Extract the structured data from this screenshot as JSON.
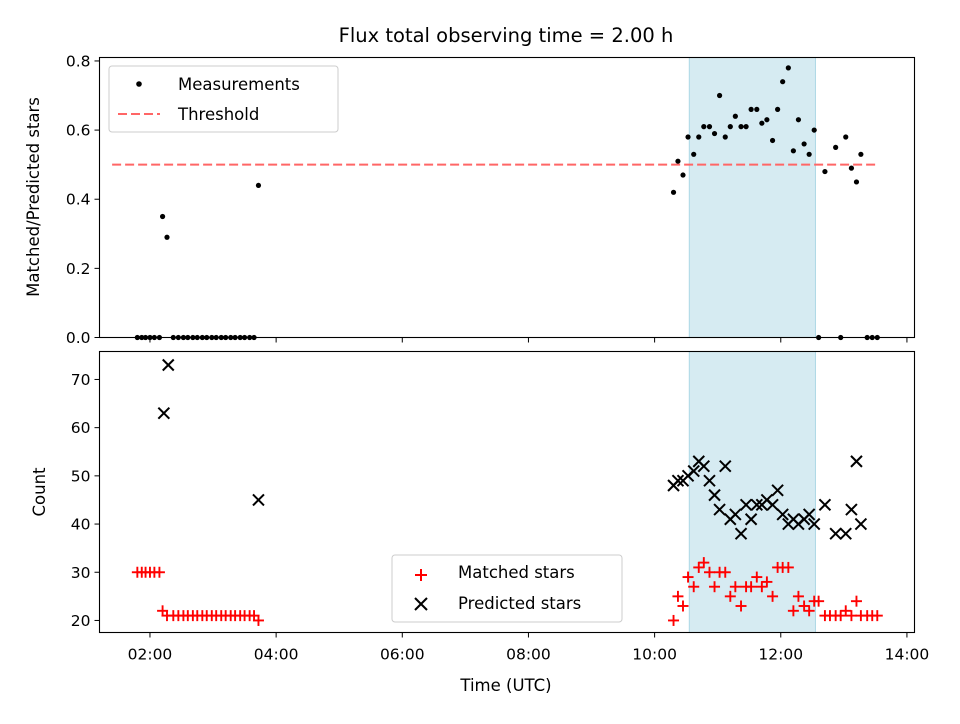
{
  "chart_data": {
    "title": "Flux total observing time = 2.00 h",
    "xlabel": "Time (UTC)",
    "xlim": [
      1.2,
      14.12
    ],
    "xticks": [
      2,
      4,
      6,
      8,
      10,
      12,
      14
    ],
    "xtick_labels": [
      "02:00",
      "04:00",
      "06:00",
      "08:00",
      "10:00",
      "12:00",
      "14:00"
    ],
    "highlight_span": {
      "x": [
        10.55,
        12.55
      ],
      "color": "#add8e6"
    },
    "panels": [
      {
        "id": "top",
        "type": "scatter",
        "ylabel": "Matched/Predicted stars",
        "ylim": [
          0,
          0.81
        ],
        "yticks": [
          0.0,
          0.2,
          0.4,
          0.6,
          0.8
        ],
        "ytick_labels": [
          "0.0",
          "0.2",
          "0.4",
          "0.6",
          "0.8"
        ],
        "legend": {
          "position": "top-left",
          "items": [
            "Measurements",
            "Threshold"
          ]
        },
        "threshold": {
          "name": "Threshold",
          "y": 0.5,
          "x": [
            1.4,
            13.55
          ],
          "color": "#ff6666",
          "dash": "dashed"
        },
        "series": [
          {
            "name": "Measurements",
            "color": "#000000",
            "marker": "dot",
            "points": [
              [
                1.8,
                0
              ],
              [
                1.87,
                0
              ],
              [
                1.93,
                0
              ],
              [
                2.0,
                0
              ],
              [
                2.07,
                0
              ],
              [
                2.15,
                0
              ],
              [
                2.2,
                0.35
              ],
              [
                2.27,
                0.29
              ],
              [
                2.37,
                0
              ],
              [
                2.45,
                0
              ],
              [
                2.53,
                0
              ],
              [
                2.6,
                0
              ],
              [
                2.68,
                0
              ],
              [
                2.75,
                0
              ],
              [
                2.83,
                0
              ],
              [
                2.9,
                0
              ],
              [
                2.98,
                0
              ],
              [
                3.05,
                0
              ],
              [
                3.13,
                0
              ],
              [
                3.2,
                0
              ],
              [
                3.28,
                0
              ],
              [
                3.35,
                0
              ],
              [
                3.43,
                0
              ],
              [
                3.5,
                0
              ],
              [
                3.58,
                0
              ],
              [
                3.65,
                0
              ],
              [
                3.72,
                0.44
              ],
              [
                10.3,
                0.42
              ],
              [
                10.37,
                0.51
              ],
              [
                10.45,
                0.47
              ],
              [
                10.53,
                0.58
              ],
              [
                10.62,
                0.53
              ],
              [
                10.7,
                0.58
              ],
              [
                10.78,
                0.61
              ],
              [
                10.87,
                0.61
              ],
              [
                10.95,
                0.59
              ],
              [
                11.03,
                0.7
              ],
              [
                11.12,
                0.58
              ],
              [
                11.2,
                0.61
              ],
              [
                11.28,
                0.64
              ],
              [
                11.37,
                0.61
              ],
              [
                11.45,
                0.61
              ],
              [
                11.53,
                0.66
              ],
              [
                11.62,
                0.66
              ],
              [
                11.7,
                0.62
              ],
              [
                11.78,
                0.63
              ],
              [
                11.87,
                0.57
              ],
              [
                11.95,
                0.66
              ],
              [
                12.03,
                0.74
              ],
              [
                12.12,
                0.78
              ],
              [
                12.2,
                0.54
              ],
              [
                12.28,
                0.63
              ],
              [
                12.37,
                0.56
              ],
              [
                12.45,
                0.53
              ],
              [
                12.53,
                0.6
              ],
              [
                12.6,
                0
              ],
              [
                12.7,
                0.48
              ],
              [
                12.87,
                0.55
              ],
              [
                12.95,
                0
              ],
              [
                13.03,
                0.58
              ],
              [
                13.12,
                0.49
              ],
              [
                13.2,
                0.45
              ],
              [
                13.27,
                0.53
              ],
              [
                13.37,
                0
              ],
              [
                13.45,
                0
              ],
              [
                13.53,
                0
              ]
            ]
          }
        ]
      },
      {
        "id": "bottom",
        "type": "scatter",
        "ylabel": "Count",
        "ylim": [
          17.5,
          75.8
        ],
        "yticks": [
          20,
          30,
          40,
          50,
          60,
          70
        ],
        "ytick_labels": [
          "20",
          "30",
          "40",
          "50",
          "60",
          "70"
        ],
        "legend": {
          "position": "lower-center",
          "items": [
            "Matched stars",
            "Predicted stars"
          ]
        },
        "series": [
          {
            "name": "Matched stars",
            "color": "#ff0000",
            "marker": "plus",
            "points": [
              [
                1.8,
                30
              ],
              [
                1.87,
                30
              ],
              [
                1.93,
                30
              ],
              [
                2.0,
                30
              ],
              [
                2.07,
                30
              ],
              [
                2.15,
                30
              ],
              [
                2.2,
                22
              ],
              [
                2.27,
                21
              ],
              [
                2.37,
                21
              ],
              [
                2.45,
                21
              ],
              [
                2.53,
                21
              ],
              [
                2.6,
                21
              ],
              [
                2.68,
                21
              ],
              [
                2.75,
                21
              ],
              [
                2.83,
                21
              ],
              [
                2.9,
                21
              ],
              [
                2.98,
                21
              ],
              [
                3.05,
                21
              ],
              [
                3.13,
                21
              ],
              [
                3.2,
                21
              ],
              [
                3.28,
                21
              ],
              [
                3.35,
                21
              ],
              [
                3.43,
                21
              ],
              [
                3.5,
                21
              ],
              [
                3.58,
                21
              ],
              [
                3.65,
                21
              ],
              [
                3.72,
                20
              ],
              [
                10.3,
                20
              ],
              [
                10.37,
                25
              ],
              [
                10.45,
                23
              ],
              [
                10.53,
                29
              ],
              [
                10.62,
                27
              ],
              [
                10.7,
                31
              ],
              [
                10.78,
                32
              ],
              [
                10.87,
                30
              ],
              [
                10.95,
                27
              ],
              [
                11.03,
                30
              ],
              [
                11.12,
                30
              ],
              [
                11.2,
                25
              ],
              [
                11.28,
                27
              ],
              [
                11.37,
                23
              ],
              [
                11.45,
                27
              ],
              [
                11.53,
                27
              ],
              [
                11.62,
                29
              ],
              [
                11.7,
                27
              ],
              [
                11.78,
                28
              ],
              [
                11.87,
                25
              ],
              [
                11.95,
                31
              ],
              [
                12.03,
                31
              ],
              [
                12.12,
                31
              ],
              [
                12.2,
                22
              ],
              [
                12.28,
                25
              ],
              [
                12.37,
                23
              ],
              [
                12.45,
                22
              ],
              [
                12.53,
                24
              ],
              [
                12.6,
                24
              ],
              [
                12.7,
                21
              ],
              [
                12.78,
                21
              ],
              [
                12.87,
                21
              ],
              [
                12.95,
                21
              ],
              [
                13.03,
                22
              ],
              [
                13.12,
                21
              ],
              [
                13.2,
                24
              ],
              [
                13.27,
                21
              ],
              [
                13.37,
                21
              ],
              [
                13.45,
                21
              ],
              [
                13.53,
                21
              ]
            ]
          },
          {
            "name": "Predicted stars",
            "color": "#000000",
            "marker": "x",
            "points": [
              [
                2.22,
                63
              ],
              [
                2.29,
                73
              ],
              [
                3.72,
                45
              ],
              [
                10.3,
                48
              ],
              [
                10.37,
                49
              ],
              [
                10.45,
                49
              ],
              [
                10.53,
                50
              ],
              [
                10.62,
                51
              ],
              [
                10.7,
                53
              ],
              [
                10.78,
                52
              ],
              [
                10.87,
                49
              ],
              [
                10.95,
                46
              ],
              [
                11.03,
                43
              ],
              [
                11.12,
                52
              ],
              [
                11.2,
                41
              ],
              [
                11.28,
                42
              ],
              [
                11.37,
                38
              ],
              [
                11.45,
                44
              ],
              [
                11.53,
                41
              ],
              [
                11.62,
                44
              ],
              [
                11.7,
                44
              ],
              [
                11.78,
                45
              ],
              [
                11.87,
                44
              ],
              [
                11.95,
                47
              ],
              [
                12.03,
                42
              ],
              [
                12.12,
                40
              ],
              [
                12.2,
                41
              ],
              [
                12.28,
                40
              ],
              [
                12.37,
                41
              ],
              [
                12.45,
                42
              ],
              [
                12.53,
                40
              ],
              [
                12.7,
                44
              ],
              [
                12.87,
                38
              ],
              [
                13.03,
                38
              ],
              [
                13.12,
                43
              ],
              [
                13.2,
                53
              ],
              [
                13.27,
                40
              ]
            ]
          }
        ]
      }
    ]
  }
}
